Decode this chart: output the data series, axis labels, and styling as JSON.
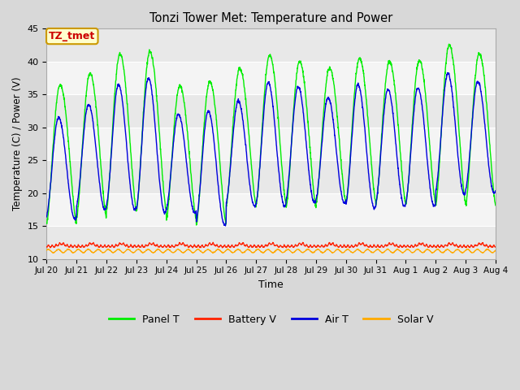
{
  "title": "Tonzi Tower Met: Temperature and Power",
  "xlabel": "Time",
  "ylabel": "Temperature (C) / Power (V)",
  "ylim": [
    10,
    45
  ],
  "yticks": [
    10,
    15,
    20,
    25,
    30,
    35,
    40,
    45
  ],
  "x_labels": [
    "Jul 20",
    "Jul 21",
    "Jul 22",
    "Jul 23",
    "Jul 24",
    "Jul 25",
    "Jul 26",
    "Jul 27",
    "Jul 28",
    "Jul 29",
    "Jul 30",
    "Jul 31",
    "Aug 1",
    "Aug 2",
    "Aug 3",
    "Aug 4"
  ],
  "annotation_text": "TZ_tmet",
  "annotation_color": "#cc0000",
  "annotation_bg": "#ffffcc",
  "annotation_border": "#cc9900",
  "colors": {
    "panel_t": "#00ee00",
    "battery_v": "#ff2200",
    "air_t": "#0000dd",
    "solar_v": "#ffaa00"
  },
  "legend_labels": [
    "Panel T",
    "Battery V",
    "Air T",
    "Solar V"
  ],
  "bg_outer": "#d8d8d8",
  "band_colors": [
    "#e8e8e8",
    "#f4f4f4"
  ],
  "grid_color": "#cccccc",
  "n_days": 15,
  "points_per_day": 144,
  "panel_mins": [
    15.2,
    16.2,
    17.4,
    17.3,
    16.0,
    15.2,
    18.1,
    18.3,
    17.8,
    18.5,
    18.5,
    18.3,
    18.3,
    18.3,
    18.3
  ],
  "panel_maxs": [
    36.5,
    38.2,
    41.2,
    41.5,
    36.3,
    37.0,
    38.9,
    41.0,
    40.0,
    39.0,
    40.5,
    40.0,
    40.2,
    42.5,
    41.2
  ],
  "air_mins": [
    16.0,
    17.5,
    17.5,
    17.0,
    17.0,
    15.2,
    18.0,
    18.0,
    18.5,
    18.5,
    17.7,
    18.0,
    18.0,
    19.8,
    20.0
  ],
  "air_maxs": [
    31.5,
    33.5,
    36.5,
    37.5,
    32.0,
    32.5,
    34.0,
    36.8,
    36.2,
    34.5,
    36.5,
    35.8,
    36.0,
    38.2,
    37.0
  ]
}
